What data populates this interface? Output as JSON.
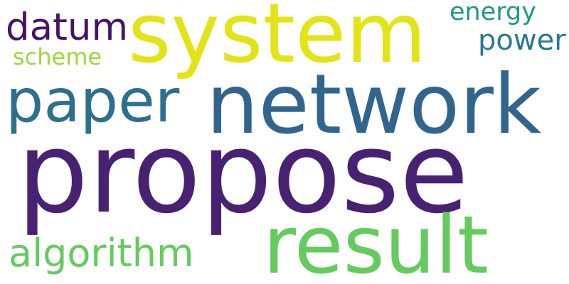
{
  "words": {
    "propose": "propose",
    "system": "system",
    "network": "network",
    "result": "result",
    "paper": "paper",
    "algorithm": "algorithm",
    "datum": "datum",
    "power": "power",
    "energy": "energy",
    "scheme": "scheme"
  },
  "colors": {
    "propose": "#482173",
    "system": "#e3e418",
    "network": "#32658e",
    "result": "#65cb5e",
    "paper": "#2e6f8e",
    "algorithm": "#65cb5e",
    "datum": "#471365",
    "power": "#29798e",
    "energy": "#1f988b",
    "scheme": "#9dd93b"
  }
}
